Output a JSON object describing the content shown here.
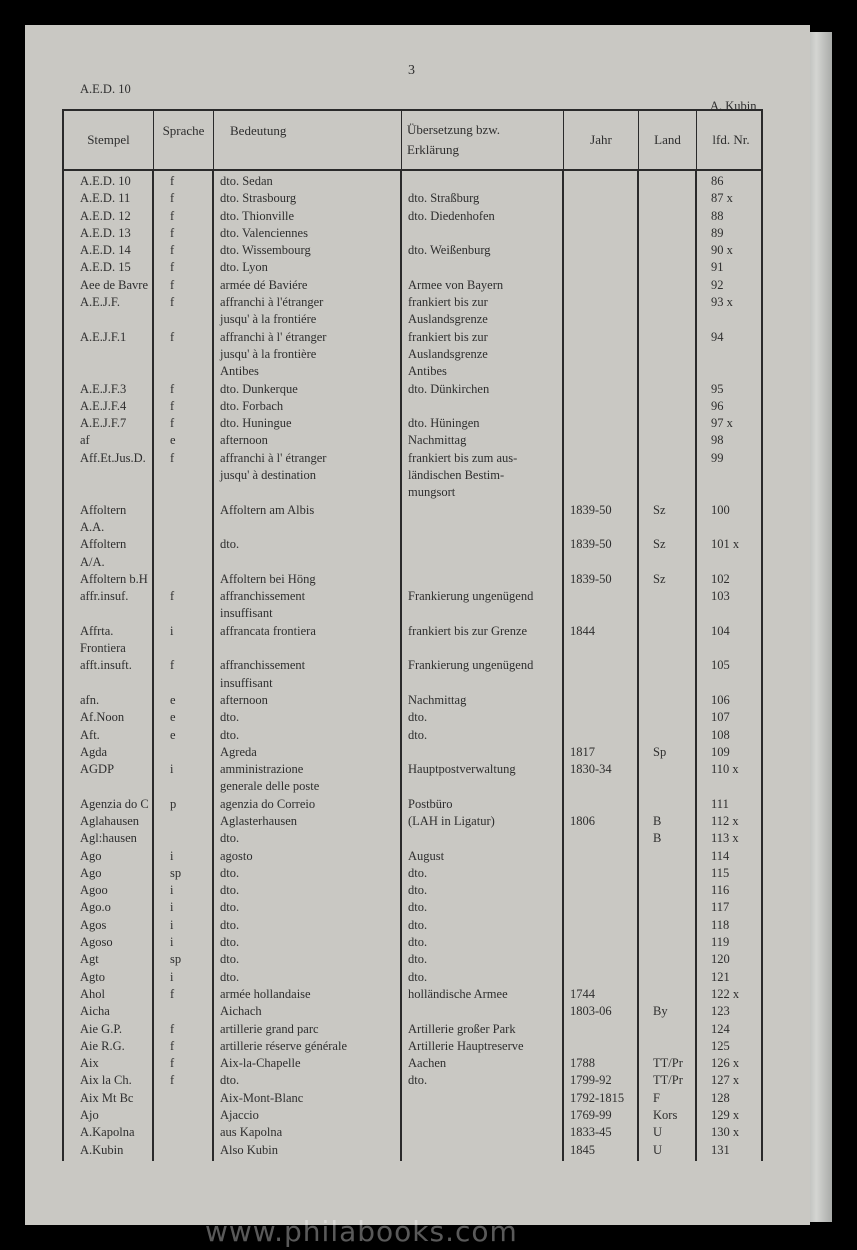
{
  "page_number": "3",
  "running_head_left": "A.E.D. 10",
  "running_head_right": "A. Kubin",
  "watermark": "www.philabooks.com",
  "columns": [
    "Stempel",
    "Sprache",
    "Bedeutung",
    "Übersetzung bzw.\nErklärung",
    "Jahr",
    "Land",
    "lfd. Nr."
  ],
  "rows": [
    [
      "A.E.D. 10",
      "f",
      "dto. Sedan",
      "",
      "",
      "",
      "86"
    ],
    [
      "A.E.D. 11",
      "f",
      "dto. Strasbourg",
      "dto. Straßburg",
      "",
      "",
      "87 x"
    ],
    [
      "A.E.D. 12",
      "f",
      "dto. Thionville",
      "dto. Diedenhofen",
      "",
      "",
      "88"
    ],
    [
      "A.E.D. 13",
      "f",
      "dto. Valenciennes",
      "",
      "",
      "",
      "89"
    ],
    [
      "A.E.D. 14",
      "f",
      "dto. Wissembourg",
      "dto. Weißenburg",
      "",
      "",
      "90 x"
    ],
    [
      "A.E.D. 15",
      "f",
      "dto. Lyon",
      "",
      "",
      "",
      "91"
    ],
    [
      "Aee de Bavre",
      "f",
      "armée dé Baviére",
      "Armee von Bayern",
      "",
      "",
      "92"
    ],
    [
      "A.E.J.F.",
      "f",
      "affranchi à l'étranger\n   jusqu' à la frontiére",
      "frankiert bis zur\n   Auslandsgrenze",
      "",
      "",
      "93 x"
    ],
    [
      "A.E.J.F.1",
      "f",
      "affranchi à l' étranger\n   jusqu' à la frontière\n   Antibes",
      "frankiert bis zur\n   Auslandsgrenze\n   Antibes",
      "",
      "",
      "94"
    ],
    [
      "A.E.J.F.3",
      "f",
      "dto. Dunkerque",
      "dto. Dünkirchen",
      "",
      "",
      "95"
    ],
    [
      "A.E.J.F.4",
      "f",
      "dto. Forbach",
      "",
      "",
      "",
      "96"
    ],
    [
      "A.E.J.F.7",
      "f",
      "dto. Huningue",
      "dto. Hüningen",
      "",
      "",
      "97 x"
    ],
    [
      "af",
      "e",
      "afternoon",
      "Nachmittag",
      "",
      "",
      "98"
    ],
    [
      "Aff.Et.Jus.D.",
      "f",
      "affranchi à l' étranger\n   jusqu' à destination",
      "frankiert bis zum aus-\n   ländischen Bestim-\n   mungsort",
      "",
      "",
      "99"
    ],
    [
      "Affoltern\n   A.A.",
      "",
      "Affoltern am Albis",
      "",
      "1839-50",
      "Sz",
      "100"
    ],
    [
      "Affoltern\n   A/A.",
      "",
      "dto.",
      "",
      "1839-50",
      "Sz",
      "101 x"
    ],
    [
      "Affoltern b.H",
      "",
      "Affoltern bei Höng",
      "",
      "1839-50",
      "Sz",
      "102"
    ],
    [
      "affr.insuf.",
      "f",
      "affranchissement\n   insuffisant",
      "Frankierung ungenügend",
      "",
      "",
      "103"
    ],
    [
      "Affrta.\n   Frontiera",
      "i",
      "affrancata frontiera",
      "frankiert bis zur Grenze",
      "1844",
      "",
      "104"
    ],
    [
      "afft.insuft.",
      "f",
      "affranchissement\n   insuffisant",
      "Frankierung ungenügend",
      "",
      "",
      "105"
    ],
    [
      "afn.",
      "e",
      "afternoon",
      "Nachmittag",
      "",
      "",
      "106"
    ],
    [
      "Af.Noon",
      "e",
      "dto.",
      "dto.",
      "",
      "",
      "107"
    ],
    [
      "Aft.",
      "e",
      "dto.",
      "dto.",
      "",
      "",
      "108"
    ],
    [
      "Agda",
      "",
      "Agreda",
      "",
      "1817",
      "Sp",
      "109"
    ],
    [
      "AGDP",
      "i",
      "amministrazione\n   generale delle poste",
      "Hauptpostverwaltung",
      "1830-34",
      "",
      "110 x"
    ],
    [
      "Agenzia do C",
      "p",
      "agenzia do Correio",
      "Postbüro",
      "",
      "",
      "111"
    ],
    [
      "Aglahausen",
      "",
      "Aglasterhausen",
      "(LAH in Ligatur)",
      "1806",
      "B",
      "112 x"
    ],
    [
      "Agl:hausen",
      "",
      "dto.",
      "",
      "",
      "B",
      "113 x"
    ],
    [
      "Ago",
      "i",
      "agosto",
      "August",
      "",
      "",
      "114"
    ],
    [
      "Ago",
      "sp",
      "dto.",
      "dto.",
      "",
      "",
      "115"
    ],
    [
      "Agoo",
      "i",
      "dto.",
      "dto.",
      "",
      "",
      "116"
    ],
    [
      "Ago.o",
      "i",
      "dto.",
      "dto.",
      "",
      "",
      "117"
    ],
    [
      "Agos",
      "i",
      "dto.",
      "dto.",
      "",
      "",
      "118"
    ],
    [
      "Agoso",
      "i",
      "dto.",
      "dto.",
      "",
      "",
      "119"
    ],
    [
      "Agt",
      "sp",
      "dto.",
      "dto.",
      "",
      "",
      "120"
    ],
    [
      "Agto",
      "i",
      "dto.",
      "dto.",
      "",
      "",
      "121"
    ],
    [
      "Ahol",
      "f",
      "armée hollandaise",
      "holländische Armee",
      "1744",
      "",
      "122 x"
    ],
    [
      "Aicha",
      "",
      "Aichach",
      "",
      "1803-06",
      "By",
      "123"
    ],
    [
      "Aie G.P.",
      "f",
      "artillerie grand parc",
      "Artillerie großer Park",
      "",
      "",
      "124"
    ],
    [
      "Aie R.G.",
      "f",
      "artillerie réserve générale",
      "Artillerie Hauptreserve",
      "",
      "",
      "125"
    ],
    [
      "Aix",
      "f",
      "Aix-la-Chapelle",
      "Aachen",
      "1788",
      "TT/Pr",
      "126 x"
    ],
    [
      "Aix la Ch.",
      "f",
      "dto.",
      "dto.",
      "1799-92",
      "TT/Pr",
      "127 x"
    ],
    [
      "Aix Mt Bc",
      "",
      "Aix-Mont-Blanc",
      "",
      "1792-1815",
      "F",
      "128"
    ],
    [
      "Ajo",
      "",
      "Ajaccio",
      "",
      "1769-99",
      "Kors",
      "129 x"
    ],
    [
      "A.Kapolna",
      "",
      "aus Kapolna",
      "",
      "1833-45",
      "U",
      "130 x"
    ],
    [
      "A.Kubin",
      "",
      "Also Kubin",
      "",
      "1845",
      "U",
      "131"
    ]
  ]
}
